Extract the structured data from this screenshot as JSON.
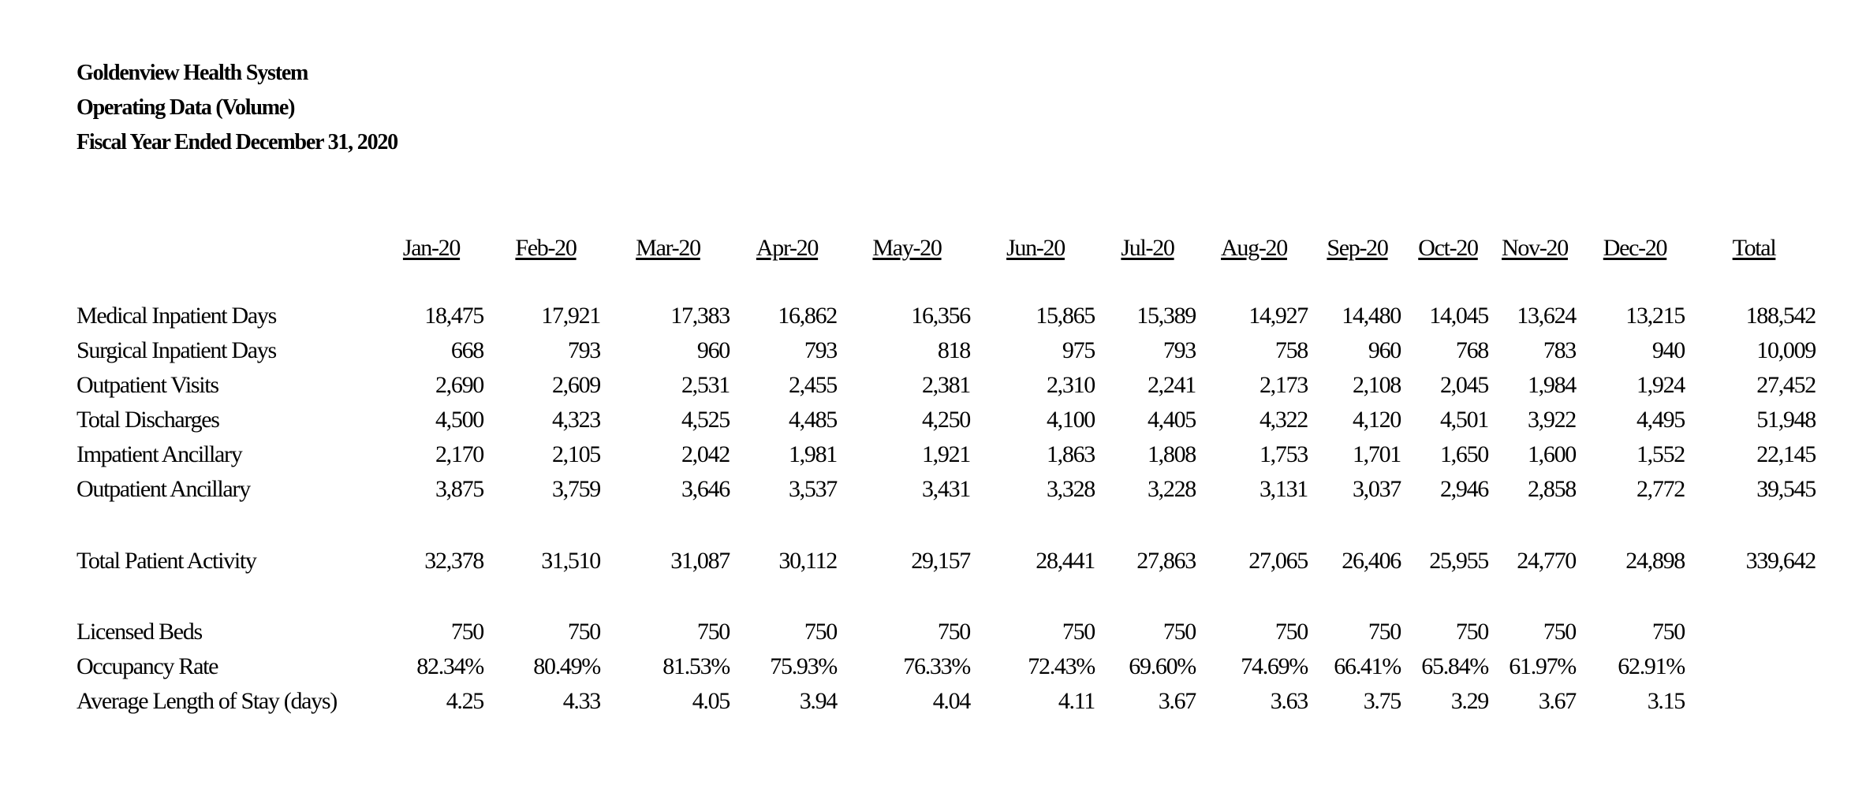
{
  "report": {
    "organization": "Goldenview Health System",
    "subtitle": "Operating Data (Volume)",
    "period": "Fiscal Year Ended December 31, 2020"
  },
  "columns": [
    "Jan-20",
    "Feb-20",
    "Mar-20",
    "Apr-20",
    "May-20",
    "Jun-20",
    "Jul-20",
    "Aug-20",
    "Sep-20",
    "Oct-20",
    "Nov-20",
    "Dec-20",
    "Total"
  ],
  "rows": [
    {
      "label": "Medical Inpatient Days",
      "values": [
        "18,475",
        "17,921",
        "17,383",
        "16,862",
        "16,356",
        "15,865",
        "15,389",
        "14,927",
        "14,480",
        "14,045",
        "13,624",
        "13,215",
        "188,542"
      ]
    },
    {
      "label": "Surgical Inpatient Days",
      "values": [
        "668",
        "793",
        "960",
        "793",
        "818",
        "975",
        "793",
        "758",
        "960",
        "768",
        "783",
        "940",
        "10,009"
      ]
    },
    {
      "label": "Outpatient Visits",
      "values": [
        "2,690",
        "2,609",
        "2,531",
        "2,455",
        "2,381",
        "2,310",
        "2,241",
        "2,173",
        "2,108",
        "2,045",
        "1,984",
        "1,924",
        "27,452"
      ]
    },
    {
      "label": "Total Discharges",
      "values": [
        "4,500",
        "4,323",
        "4,525",
        "4,485",
        "4,250",
        "4,100",
        "4,405",
        "4,322",
        "4,120",
        "4,501",
        "3,922",
        "4,495",
        "51,948"
      ]
    },
    {
      "label": "Impatient Ancillary",
      "values": [
        "2,170",
        "2,105",
        "2,042",
        "1,981",
        "1,921",
        "1,863",
        "1,808",
        "1,753",
        "1,701",
        "1,650",
        "1,600",
        "1,552",
        "22,145"
      ]
    },
    {
      "label": "Outpatient Ancillary",
      "values": [
        "3,875",
        "3,759",
        "3,646",
        "3,537",
        "3,431",
        "3,328",
        "3,228",
        "3,131",
        "3,037",
        "2,946",
        "2,858",
        "2,772",
        "39,545"
      ]
    },
    {
      "label": "Total Patient Activity",
      "values": [
        "32,378",
        "31,510",
        "31,087",
        "30,112",
        "29,157",
        "28,441",
        "27,863",
        "27,065",
        "26,406",
        "25,955",
        "24,770",
        "24,898",
        "339,642"
      ]
    },
    {
      "label": "Licensed Beds",
      "values": [
        "750",
        "750",
        "750",
        "750",
        "750",
        "750",
        "750",
        "750",
        "750",
        "750",
        "750",
        "750",
        ""
      ]
    },
    {
      "label": "Occupancy Rate",
      "values": [
        "82.34%",
        "80.49%",
        "81.53%",
        "75.93%",
        "76.33%",
        "72.43%",
        "69.60%",
        "74.69%",
        "66.41%",
        "65.84%",
        "61.97%",
        "62.91%",
        ""
      ]
    },
    {
      "label": "Average Length of Stay (days)",
      "values": [
        "4.25",
        "4.33",
        "4.05",
        "3.94",
        "4.04",
        "4.11",
        "3.67",
        "3.63",
        "3.75",
        "3.29",
        "3.67",
        "3.15",
        ""
      ]
    }
  ]
}
